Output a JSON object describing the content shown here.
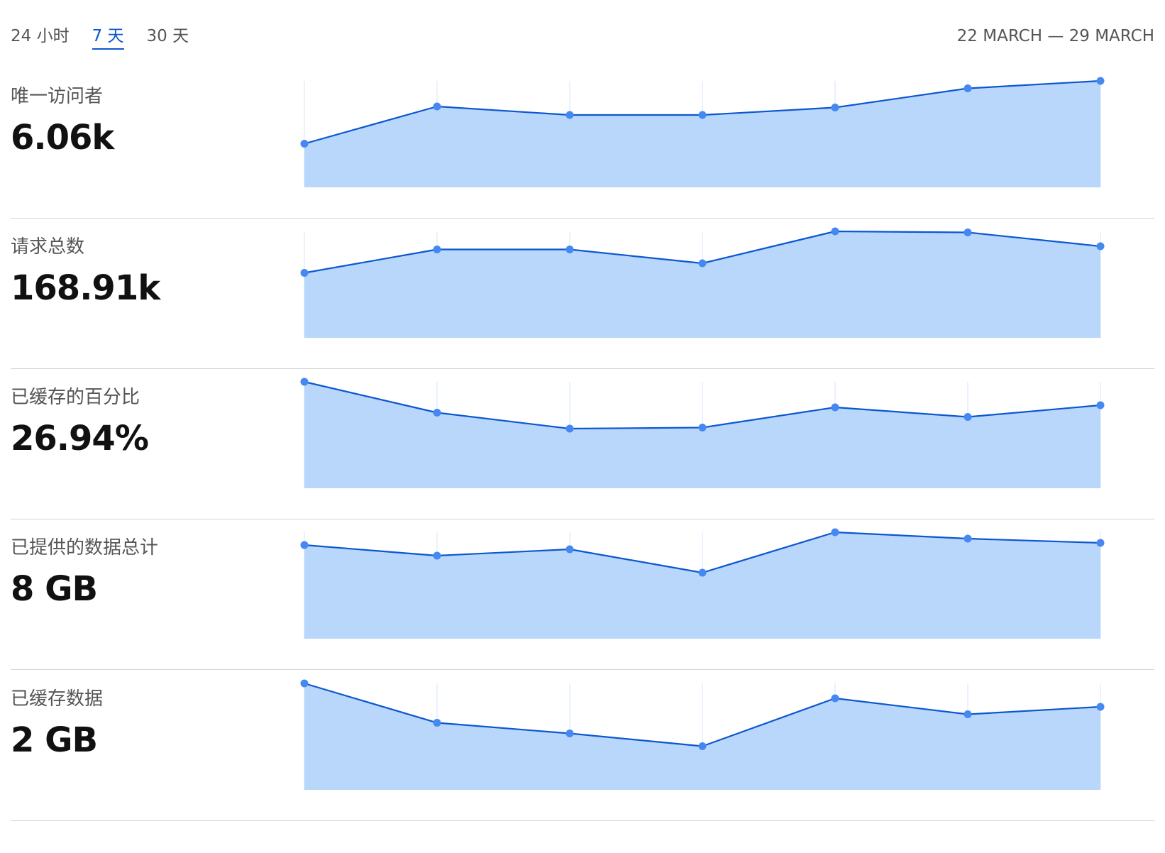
{
  "range_tabs": [
    {
      "label": "24 小时",
      "active": false
    },
    {
      "label": "7 天",
      "active": true
    },
    {
      "label": "30 天",
      "active": false
    }
  ],
  "date_range": "22 MARCH — 29 MARCH",
  "colors": {
    "line": "#0b57d0",
    "fill": "#b9d6fb",
    "point": "#4688f1",
    "gridline": "#eaf2fe",
    "active_tab": "#0b57d0"
  },
  "metrics": [
    {
      "label": "唯一访问者",
      "value": "6.06k"
    },
    {
      "label": "请求总数",
      "value": "168.91k"
    },
    {
      "label": "已缓存的百分比",
      "value": "26.94%"
    },
    {
      "label": "已提供的数据总计",
      "value": "8 GB"
    },
    {
      "label": "已缓存数据",
      "value": "2 GB"
    }
  ],
  "chart_data": [
    {
      "type": "area",
      "x": [
        1,
        2,
        3,
        4,
        5,
        6,
        7
      ],
      "values": [
        0.41,
        0.76,
        0.68,
        0.68,
        0.75,
        0.93,
        1.0
      ],
      "ylim": [
        0,
        1
      ],
      "grid": true
    },
    {
      "type": "area",
      "x": [
        1,
        2,
        3,
        4,
        5,
        6,
        7
      ],
      "values": [
        0.61,
        0.83,
        0.83,
        0.7,
        1.0,
        0.99,
        0.86
      ],
      "ylim": [
        0,
        1
      ],
      "grid": true
    },
    {
      "type": "area",
      "x": [
        1,
        2,
        3,
        4,
        5,
        6,
        7
      ],
      "values": [
        1.0,
        0.71,
        0.56,
        0.57,
        0.76,
        0.67,
        0.78
      ],
      "ylim": [
        0,
        1
      ],
      "grid": true
    },
    {
      "type": "area",
      "x": [
        1,
        2,
        3,
        4,
        5,
        6,
        7
      ],
      "values": [
        0.88,
        0.78,
        0.84,
        0.62,
        1.0,
        0.94,
        0.9
      ],
      "ylim": [
        0,
        1
      ],
      "grid": true
    },
    {
      "type": "area",
      "x": [
        1,
        2,
        3,
        4,
        5,
        6,
        7
      ],
      "values": [
        1.0,
        0.63,
        0.53,
        0.41,
        0.86,
        0.71,
        0.78
      ],
      "ylim": [
        0,
        1
      ],
      "grid": true
    }
  ]
}
